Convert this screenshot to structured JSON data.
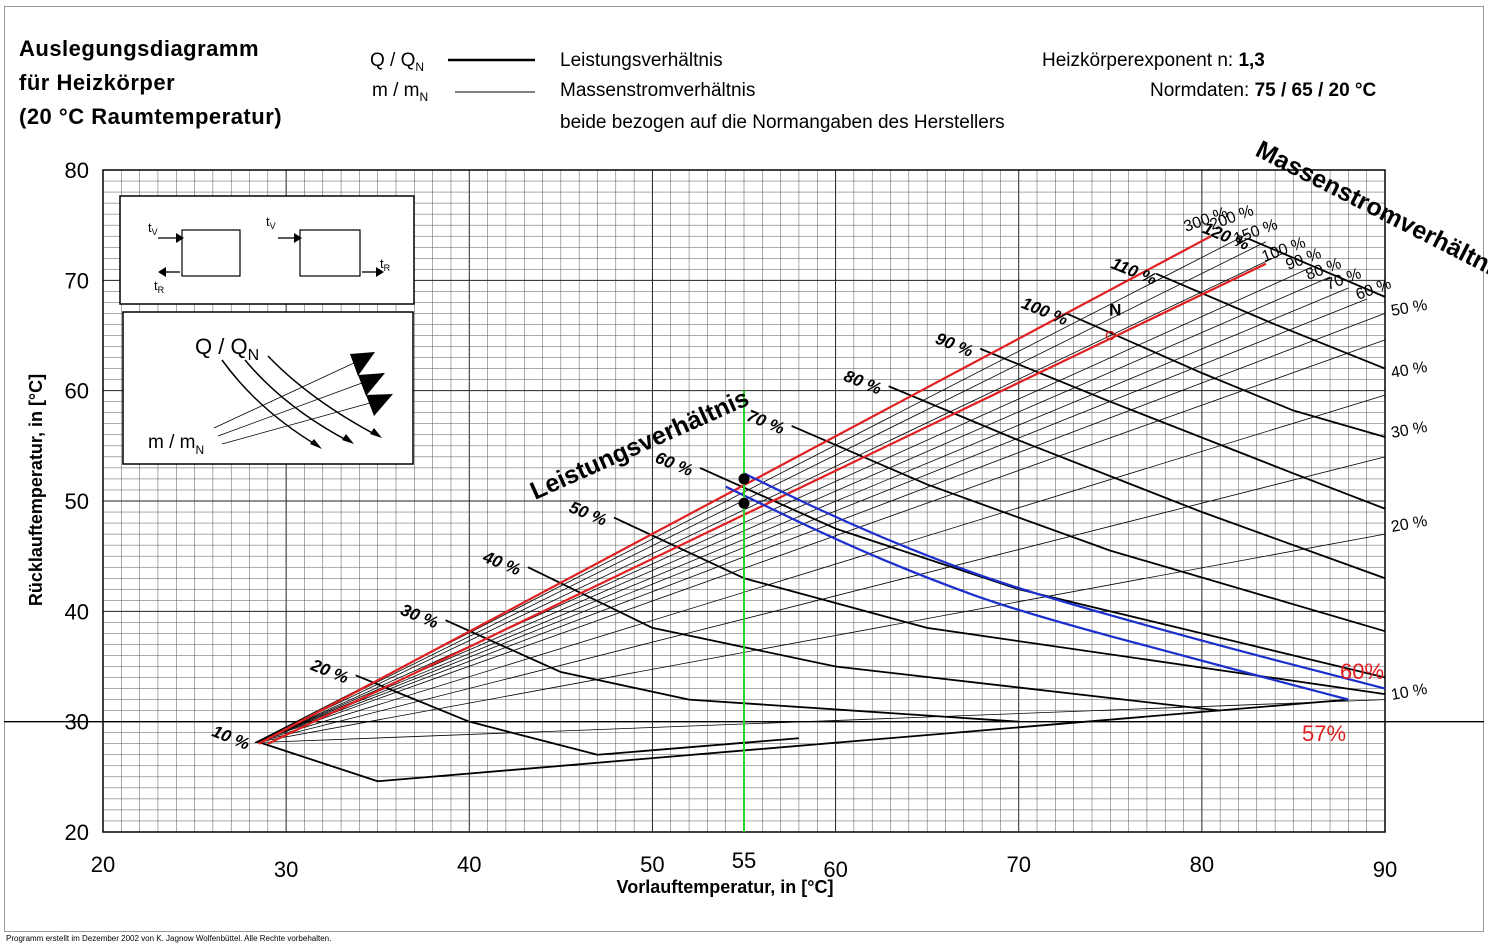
{
  "header": {
    "title_lines": [
      "Auslegungsdiagramm",
      "für Heizkörper",
      "(20 °C Raumtemperatur)"
    ],
    "legend_q_symbol": "Q / Q",
    "legend_q_sub": "N",
    "legend_m_symbol": "m / m",
    "legend_m_sub": "N",
    "legend_q_text": "Leistungsverhältnis",
    "legend_m_text": "Massenstromverhältnis",
    "legend_note": "beide bezogen auf die Normangaben des Herstellers",
    "exponent_label": "Heizkörperexponent n:",
    "exponent_value": "1,3",
    "normdaten_label": "Normdaten:",
    "normdaten_value": "75 / 65 / 20 °C"
  },
  "inset": {
    "tv_label": "t",
    "tv_sub": "V",
    "tr_label": "t",
    "tr_sub": "R",
    "q_label": "Q / Q",
    "q_sub": "N",
    "m_label": "m  / m",
    "m_sub": "N"
  },
  "footer": "Programm erstellt im Dezember 2002 von K. Jagnow Wolfenbüttel. Alle Rechte vorbehalten.",
  "colors": {
    "red": "#e02020",
    "blue": "#1c2fcc",
    "green": "#2ad12a",
    "grid": "#555555",
    "curve": "#000000"
  },
  "chart_data": {
    "type": "line",
    "xlabel": "Vorlauftemperatur, in [°C]",
    "ylabel": "Rücklauftemperatur, in [°C]",
    "xlim": [
      20,
      90
    ],
    "ylim": [
      20,
      80
    ],
    "x_ticks": [
      "20",
      "30",
      "40",
      "50",
      "55",
      "60",
      "70",
      "80",
      "90"
    ],
    "y_ticks": [
      "20",
      "30",
      "40",
      "50",
      "60",
      "70",
      "80"
    ],
    "group_title_power": "Leistungsverhältnis",
    "group_title_mass": "Massenstromverhältnis",
    "power_curves": [
      {
        "label": "10 %",
        "points": [
          [
            28.4,
            28.2
          ],
          [
            35,
            24.6
          ],
          [
            88,
            32
          ]
        ]
      },
      {
        "label": "20 %",
        "points": [
          [
            33.8,
            34.2
          ],
          [
            40,
            30
          ],
          [
            47,
            27
          ],
          [
            58,
            28.5
          ]
        ]
      },
      {
        "label": "30 %",
        "points": [
          [
            38.7,
            39.2
          ],
          [
            45,
            34.5
          ],
          [
            52,
            32
          ],
          [
            70,
            30
          ]
        ]
      },
      {
        "label": "40 %",
        "points": [
          [
            43.2,
            44
          ],
          [
            50,
            38.5
          ],
          [
            60,
            35
          ],
          [
            81,
            31
          ]
        ]
      },
      {
        "label": "50 %",
        "points": [
          [
            47.9,
            48.5
          ],
          [
            55,
            43
          ],
          [
            65,
            38.5
          ],
          [
            90,
            32.5
          ]
        ]
      },
      {
        "label": "60 %",
        "points": [
          [
            52.6,
            53
          ],
          [
            60,
            47.5
          ],
          [
            70,
            42
          ],
          [
            90,
            34
          ]
        ]
      },
      {
        "label": "70 %",
        "points": [
          [
            57.6,
            56.8
          ],
          [
            65,
            51.5
          ],
          [
            75,
            45.5
          ],
          [
            90,
            38.2
          ]
        ]
      },
      {
        "label": "80 %",
        "points": [
          [
            62.9,
            60.4
          ],
          [
            70,
            55.5
          ],
          [
            80,
            49
          ],
          [
            90,
            43
          ]
        ]
      },
      {
        "label": "90 %",
        "points": [
          [
            67.9,
            63.8
          ],
          [
            75,
            59
          ],
          [
            85,
            52.5
          ],
          [
            90,
            49.3
          ]
        ]
      },
      {
        "label": "100 %",
        "points": [
          [
            72.6,
            67
          ],
          [
            80,
            61.6
          ],
          [
            85,
            58.2
          ],
          [
            90,
            55.8
          ]
        ]
      },
      {
        "label": "110 %",
        "points": [
          [
            77.5,
            70.6
          ],
          [
            84,
            66
          ],
          [
            90,
            62
          ]
        ]
      },
      {
        "label": "120 %",
        "points": [
          [
            82.5,
            73.8
          ],
          [
            90,
            68.5
          ]
        ]
      }
    ],
    "mass_flow_labels": [
      "300 %",
      "200 %",
      "150 %",
      "100 %",
      "90 %",
      "80 %",
      "70 %",
      "60 %",
      "50 %",
      "40 %",
      "30 %",
      "20 %",
      "10 %"
    ],
    "mass_flow_lines": [
      {
        "label": "300 %",
        "end": [
          82.5,
          74.2
        ]
      },
      {
        "label": "200 %",
        "end": [
          83.5,
          73.5
        ]
      },
      {
        "label": "150 %",
        "end": [
          84.5,
          72.5
        ]
      },
      {
        "label": "100 %",
        "end": [
          86,
          71.2
        ]
      },
      {
        "label": "90 %",
        "end": [
          87,
          70.3
        ]
      },
      {
        "label": "80 %",
        "end": [
          88,
          69.3
        ]
      },
      {
        "label": "70 %",
        "end": [
          89,
          68.3
        ]
      },
      {
        "label": "60 %",
        "end": [
          90,
          67
        ]
      },
      {
        "label": "50 %",
        "end": [
          90,
          64.6
        ]
      },
      {
        "label": "40 %",
        "end": [
          90,
          59.6
        ]
      },
      {
        "label": "30 %",
        "end": [
          90,
          54
        ]
      },
      {
        "label": "20 %",
        "end": [
          90,
          47
        ]
      },
      {
        "label": "10 %",
        "end": [
          90,
          32
        ]
      }
    ],
    "highlight_series": [
      {
        "color": "red",
        "points": [
          [
            28.5,
            28
          ],
          [
            80.5,
            74
          ]
        ]
      },
      {
        "color": "red",
        "points": [
          [
            29,
            28
          ],
          [
            83.5,
            71.5
          ]
        ]
      },
      {
        "color": "blue",
        "label": "60%",
        "points": [
          [
            55,
            52.5
          ],
          [
            60,
            48.5
          ],
          [
            65,
            45
          ],
          [
            70,
            42
          ],
          [
            80,
            37.3
          ],
          [
            90,
            33
          ]
        ]
      },
      {
        "color": "blue",
        "label": "57%",
        "points": [
          [
            54,
            51.3
          ],
          [
            60,
            46.5
          ],
          [
            65,
            43
          ],
          [
            70,
            40
          ],
          [
            80,
            35.5
          ],
          [
            88,
            32
          ]
        ]
      },
      {
        "color": "green",
        "points": [
          [
            55,
            20
          ],
          [
            55,
            60
          ]
        ]
      }
    ],
    "marked_points": [
      {
        "x": 55,
        "y": 52
      },
      {
        "x": 55,
        "y": 49.8
      }
    ],
    "norm_point": {
      "label": "N",
      "x": 75,
      "y": 65
    },
    "result_labels": [
      "60%",
      "57%"
    ]
  }
}
